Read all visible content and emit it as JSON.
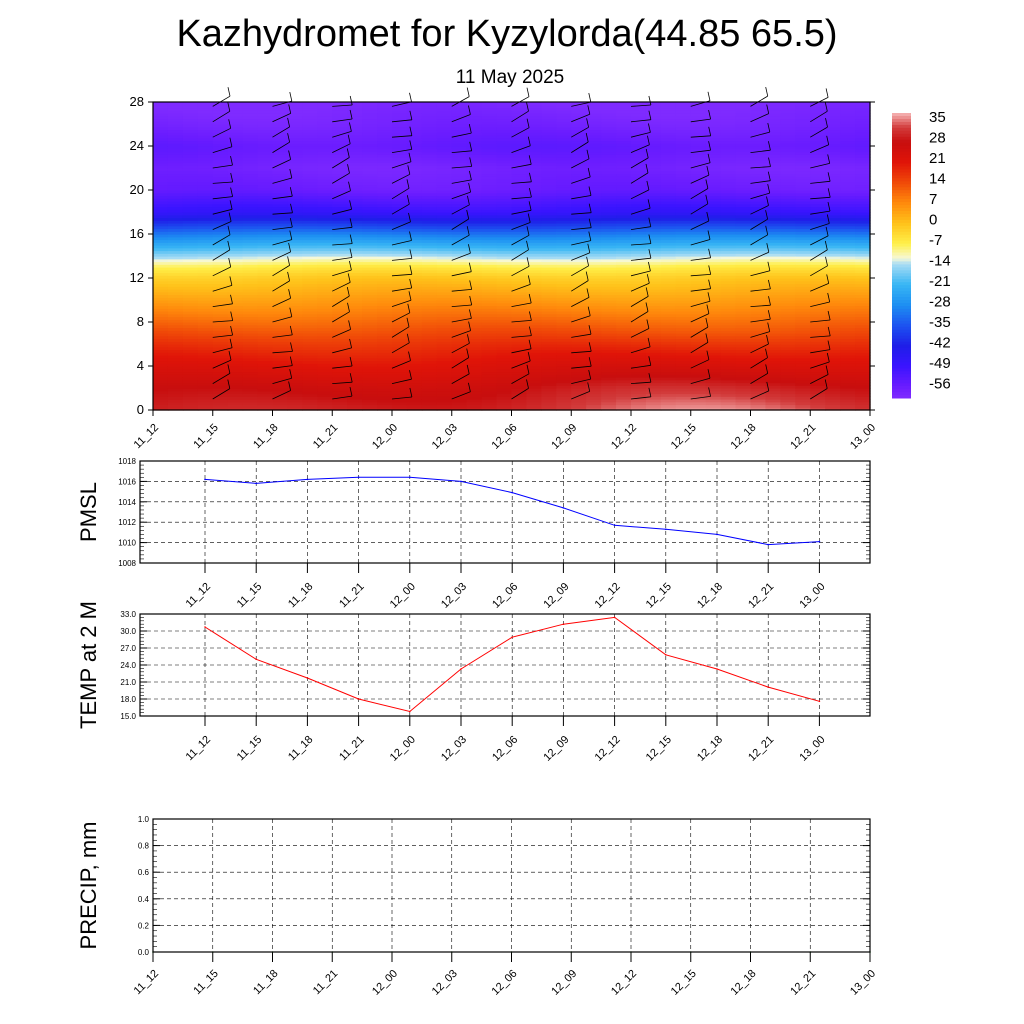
{
  "title": "Kazhydromet for Kyzylorda(44.85 65.5)",
  "subtitle": "11 May 2025",
  "chart_data": [
    {
      "type": "heatmap",
      "name": "vertical temperature cross-section with wind barbs",
      "x_ticks": [
        "11_12",
        "11_15",
        "11_18",
        "11_21",
        "12_00",
        "12_03",
        "12_06",
        "12_09",
        "12_12",
        "12_15",
        "12_18",
        "12_21",
        "13_00"
      ],
      "y_ticks": [
        "0",
        "4",
        "8",
        "12",
        "16",
        "20",
        "24",
        "28"
      ],
      "ylim": [
        0,
        28
      ],
      "colorbar": {
        "labels": [
          "35",
          "28",
          "21",
          "14",
          "7",
          "0",
          "-7",
          "-14",
          "-21",
          "-28",
          "-35",
          "-42",
          "-49",
          "-56"
        ],
        "range": [
          -60,
          38
        ]
      },
      "temperature_profile": {
        "y": [
          0,
          2,
          4,
          6,
          8,
          10,
          12,
          13,
          14,
          16,
          18,
          20,
          22,
          24,
          26,
          28
        ],
        "value": [
          30,
          27,
          22,
          17,
          11,
          5,
          -1,
          -6,
          -14,
          -30,
          -48,
          -56,
          -58,
          -55,
          -58,
          -60
        ]
      },
      "surface_warm_anomaly": {
        "x_center": 9.5,
        "width": 6,
        "max_delta": 6
      }
    },
    {
      "type": "line",
      "ylabel": "PMSL",
      "x": [
        "11_12",
        "11_15",
        "11_18",
        "11_21",
        "12_00",
        "12_03",
        "12_06",
        "12_09",
        "12_12",
        "12_15",
        "12_18",
        "12_21",
        "13_00"
      ],
      "y_ticks": [
        "1008",
        "1010",
        "1012",
        "1014",
        "1016",
        "1018"
      ],
      "ylim": [
        1008,
        1018
      ],
      "series": [
        {
          "values": [
            1016.2,
            1015.8,
            1016.2,
            1016.4,
            1016.4,
            1016.0,
            1014.9,
            1013.4,
            1011.7,
            1011.3,
            1010.8,
            1009.8,
            1010.1
          ]
        }
      ],
      "color": "#0000ff",
      "grid": true
    },
    {
      "type": "line",
      "ylabel": "TEMP at 2 M",
      "x": [
        "11_12",
        "11_15",
        "11_18",
        "11_21",
        "12_00",
        "12_03",
        "12_06",
        "12_09",
        "12_12",
        "12_15",
        "12_18",
        "12_21",
        "13_00"
      ],
      "y_ticks": [
        "15.0",
        "18.0",
        "21.0",
        "24.0",
        "27.0",
        "30.0",
        "33.0"
      ],
      "ylim": [
        15,
        33
      ],
      "series": [
        {
          "values": [
            30.7,
            25.0,
            21.7,
            18.0,
            15.8,
            23.3,
            28.9,
            31.2,
            32.4,
            25.8,
            23.3,
            20.1,
            17.6
          ]
        }
      ],
      "color": "#ff0000",
      "grid": true
    },
    {
      "type": "line",
      "ylabel": "PRECIP, mm",
      "x_ticks": [
        "11_12",
        "11_15",
        "11_18",
        "11_21",
        "12_00",
        "12_03",
        "12_06",
        "12_09",
        "12_12",
        "12_15",
        "12_18",
        "12_21",
        "13_00"
      ],
      "y_ticks": [
        "0.0",
        "0.2",
        "0.4",
        "0.6",
        "0.8",
        "1.0"
      ],
      "ylim": [
        0,
        1
      ],
      "series": [
        {
          "values": [
            0,
            0,
            0,
            0,
            0,
            0,
            0,
            0,
            0,
            0,
            0,
            0,
            0
          ]
        }
      ],
      "color": "#006400",
      "grid": true
    }
  ]
}
